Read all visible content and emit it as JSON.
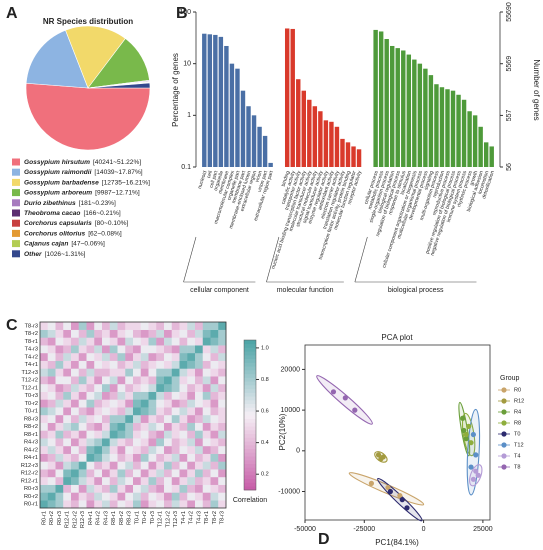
{
  "chart_data": [
    {
      "type": "pie",
      "panel": "A",
      "title": "NR Species distribution",
      "names": [
        "Gossypium hirsutum",
        "Gossypium raimondii",
        "Gossypium barbadense",
        "Gossypium arboreum",
        "Durio zibethinus",
        "Theobroma cacao",
        "Corchorus capsularis",
        "Corchorus olitorius",
        "Cajanus cajan",
        "Other"
      ],
      "values": [
        51.22,
        17.87,
        16.21,
        12.71,
        0.23,
        0.21,
        0.1,
        0.08,
        0.06,
        1.31
      ],
      "value_labels": [
        "[40241~51.22%]",
        "[14039~17.87%]",
        "[12735~16.21%]",
        "[9987~12.71%]",
        "[181~0.23%]",
        "[166~0.21%]",
        "[80~0.10%]",
        "[62~0.08%]",
        "[47~0.06%]",
        "[1026~1.31%]"
      ],
      "colors": [
        "#f0707c",
        "#8db4e2",
        "#f2d96a",
        "#79b94b",
        "#a77bbf",
        "#5b2d70",
        "#c8403f",
        "#e39a33",
        "#b3cd52",
        "#33488d"
      ]
    },
    {
      "type": "bar",
      "panel": "B",
      "ylabel": "Percentage of genes",
      "y2label": "Number of genes",
      "log": true,
      "ylim": [
        0.1,
        100
      ],
      "yticks": [
        0.1,
        1,
        10,
        100
      ],
      "y2lim": [
        56,
        55690
      ],
      "y2ticks": [
        56,
        557,
        5569,
        55690
      ],
      "groups": [
        {
          "name": "cellular component",
          "color": "#4a6fa5",
          "categories": [
            "nucleoid",
            "cell",
            "cell part",
            "organelle",
            "membrane",
            "macromolecular complex",
            "organelle part",
            "membrane part",
            "membrane-enclosed lumen",
            "extracellular region",
            "virion",
            "virion part",
            "extracellular region part"
          ],
          "values": [
            38,
            37,
            36,
            33,
            22,
            10,
            8,
            3,
            1.5,
            1,
            0.6,
            0.4,
            0.12
          ]
        },
        {
          "name": "molecular function",
          "color": "#d93a2b",
          "categories": [
            "binding",
            "catalytic activity",
            "transporter activity",
            "nucleic acid binding transcription factor activity",
            "molecular transducer activity",
            "structural molecule activity",
            "signal transducer activity",
            "enzyme regulator activity",
            "antioxidant activity",
            "electron carrier activity",
            "translation regulator activity",
            "transcription factor activity, protein binding",
            "molecular function regulator",
            "receptor activity"
          ],
          "values": [
            48,
            47,
            5,
            3,
            2,
            1.5,
            1.2,
            0.8,
            0.75,
            0.6,
            0.35,
            0.3,
            0.25,
            0.22
          ]
        },
        {
          "name": "biological process",
          "color": "#4e9a3a",
          "categories": [
            "cellular process",
            "metabolic process",
            "single-organism process",
            "biological regulation",
            "regulation of biological process",
            "response to stimulus",
            "localization",
            "cellular component organization or biogenesis",
            "multicellular organismal process",
            "developmental process",
            "signaling",
            "multi-organism process",
            "reproduction",
            "reproductive process",
            "positive regulation of biological process",
            "negative regulation of biological process",
            "immune system process",
            "rhythmic process",
            "growth",
            "biological adhesion",
            "locomotion",
            "detoxification"
          ],
          "values": [
            45,
            42,
            30,
            22,
            20,
            18,
            15,
            12,
            10,
            8,
            6,
            4,
            3.5,
            3.2,
            3,
            2.5,
            2,
            1.2,
            1,
            0.6,
            0.3,
            0.25
          ]
        }
      ]
    },
    {
      "type": "heatmap",
      "panel": "C",
      "colorbar_label": "Correlation",
      "labels": [
        "R0-r1",
        "R0-r2",
        "R0-r3",
        "R12-r1",
        "R12-r2",
        "R12-r3",
        "R4-r1",
        "R4-r2",
        "R4-r3",
        "R8-r1",
        "R8-r2",
        "R8-r3",
        "T0-r1",
        "T0-r2",
        "T0-r3",
        "T12-r1",
        "T12-r2",
        "T12-r3",
        "T4-r1",
        "T4-r2",
        "T4-r3",
        "T8-r1",
        "T8-r2",
        "T8-r3"
      ],
      "clim": [
        0.1,
        1.05
      ],
      "colormap": [
        "#c65aa6",
        "#f5eff5",
        "#4aa3a5"
      ],
      "cticks": [
        0.2,
        0.4,
        0.6,
        0.8,
        {
          "value": 1,
          "label": "1.0"
        }
      ],
      "values": [
        [
          1,
          0.9,
          0.8,
          0.5,
          0.4,
          0.6,
          0.3,
          0.5,
          0.7,
          0.4,
          0.6,
          0.5,
          0.8,
          0.3,
          0.5,
          0.6,
          0.4,
          0.7,
          0.5,
          0.3,
          0.6,
          0.4,
          0.8,
          0.5
        ],
        [
          0.9,
          1,
          0.8,
          0.6,
          0.3,
          0.5,
          0.4,
          0.7,
          0.6,
          0.5,
          0.3,
          0.6,
          0.7,
          0.4,
          0.6,
          0.5,
          0.3,
          0.8,
          0.4,
          0.6,
          0.5,
          0.3,
          0.7,
          0.6
        ],
        [
          0.8,
          0.8,
          1,
          0.4,
          0.6,
          0.3,
          0.7,
          0.5,
          0.4,
          0.8,
          0.5,
          0.3,
          0.6,
          0.7,
          0.4,
          0.3,
          0.6,
          0.5,
          0.8,
          0.4,
          0.3,
          0.6,
          0.5,
          0.4
        ],
        [
          0.5,
          0.6,
          0.4,
          1,
          0.9,
          0.7,
          0.5,
          0.3,
          0.6,
          0.4,
          0.7,
          0.6,
          0.3,
          0.5,
          0.8,
          0.4,
          0.6,
          0.3,
          0.5,
          0.7,
          0.4,
          0.5,
          0.3,
          0.6
        ],
        [
          0.4,
          0.3,
          0.6,
          0.9,
          1,
          0.8,
          0.4,
          0.6,
          0.3,
          0.5,
          0.8,
          0.4,
          0.6,
          0.3,
          0.5,
          0.7,
          0.4,
          0.6,
          0.3,
          0.5,
          0.8,
          0.4,
          0.6,
          0.3
        ],
        [
          0.6,
          0.5,
          0.3,
          0.7,
          0.8,
          1,
          0.6,
          0.4,
          0.5,
          0.3,
          0.6,
          0.7,
          0.4,
          0.6,
          0.3,
          0.5,
          0.8,
          0.4,
          0.6,
          0.3,
          0.5,
          0.7,
          0.4,
          0.8
        ],
        [
          0.3,
          0.4,
          0.7,
          0.5,
          0.4,
          0.6,
          1,
          0.9,
          0.7,
          0.6,
          0.4,
          0.5,
          0.3,
          0.8,
          0.6,
          0.4,
          0.5,
          0.7,
          0.3,
          0.6,
          0.4,
          0.5,
          0.8,
          0.3
        ],
        [
          0.5,
          0.7,
          0.5,
          0.3,
          0.6,
          0.4,
          0.9,
          1,
          0.8,
          0.5,
          0.3,
          0.6,
          0.5,
          0.4,
          0.7,
          0.6,
          0.3,
          0.4,
          0.6,
          0.5,
          0.7,
          0.3,
          0.4,
          0.6
        ],
        [
          0.7,
          0.6,
          0.4,
          0.6,
          0.3,
          0.5,
          0.7,
          0.8,
          1,
          0.7,
          0.5,
          0.4,
          0.6,
          0.5,
          0.3,
          0.8,
          0.6,
          0.4,
          0.5,
          0.7,
          0.3,
          0.6,
          0.5,
          0.4
        ],
        [
          0.4,
          0.5,
          0.8,
          0.4,
          0.5,
          0.3,
          0.6,
          0.5,
          0.7,
          1,
          0.9,
          0.8,
          0.5,
          0.6,
          0.4,
          0.3,
          0.7,
          0.5,
          0.6,
          0.4,
          0.8,
          0.5,
          0.3,
          0.7
        ],
        [
          0.6,
          0.3,
          0.5,
          0.7,
          0.8,
          0.6,
          0.4,
          0.3,
          0.5,
          0.9,
          1,
          0.8,
          0.4,
          0.5,
          0.7,
          0.6,
          0.3,
          0.5,
          0.4,
          0.8,
          0.6,
          0.3,
          0.5,
          0.4
        ],
        [
          0.5,
          0.6,
          0.3,
          0.6,
          0.4,
          0.7,
          0.5,
          0.6,
          0.4,
          0.8,
          0.8,
          1,
          0.7,
          0.3,
          0.5,
          0.4,
          0.6,
          0.8,
          0.5,
          0.3,
          0.4,
          0.7,
          0.6,
          0.5
        ],
        [
          0.8,
          0.7,
          0.6,
          0.3,
          0.6,
          0.4,
          0.3,
          0.5,
          0.6,
          0.5,
          0.4,
          0.7,
          1,
          0.9,
          0.8,
          0.5,
          0.4,
          0.6,
          0.7,
          0.5,
          0.3,
          0.6,
          0.4,
          0.5
        ],
        [
          0.3,
          0.4,
          0.7,
          0.5,
          0.3,
          0.6,
          0.8,
          0.4,
          0.5,
          0.6,
          0.5,
          0.3,
          0.9,
          1,
          0.8,
          0.6,
          0.5,
          0.3,
          0.4,
          0.7,
          0.6,
          0.5,
          0.3,
          0.6
        ],
        [
          0.5,
          0.6,
          0.4,
          0.8,
          0.5,
          0.3,
          0.6,
          0.7,
          0.3,
          0.4,
          0.7,
          0.5,
          0.8,
          0.8,
          1,
          0.7,
          0.4,
          0.6,
          0.5,
          0.3,
          0.6,
          0.8,
          0.4,
          0.5
        ],
        [
          0.6,
          0.5,
          0.3,
          0.4,
          0.7,
          0.5,
          0.4,
          0.6,
          0.8,
          0.3,
          0.6,
          0.4,
          0.5,
          0.6,
          0.7,
          1,
          0.9,
          0.8,
          0.6,
          0.4,
          0.5,
          0.3,
          0.7,
          0.4
        ],
        [
          0.4,
          0.3,
          0.6,
          0.6,
          0.4,
          0.8,
          0.5,
          0.3,
          0.6,
          0.7,
          0.3,
          0.6,
          0.4,
          0.5,
          0.4,
          0.9,
          1,
          0.8,
          0.5,
          0.6,
          0.4,
          0.7,
          0.3,
          0.6
        ],
        [
          0.7,
          0.8,
          0.5,
          0.3,
          0.6,
          0.4,
          0.7,
          0.4,
          0.4,
          0.5,
          0.5,
          0.8,
          0.6,
          0.3,
          0.6,
          0.8,
          0.8,
          1,
          0.7,
          0.5,
          0.3,
          0.6,
          0.5,
          0.4
        ],
        [
          0.5,
          0.4,
          0.8,
          0.5,
          0.3,
          0.6,
          0.3,
          0.6,
          0.5,
          0.6,
          0.4,
          0.5,
          0.7,
          0.4,
          0.5,
          0.6,
          0.5,
          0.7,
          1,
          0.9,
          0.8,
          0.4,
          0.6,
          0.5
        ],
        [
          0.3,
          0.6,
          0.4,
          0.7,
          0.5,
          0.3,
          0.6,
          0.5,
          0.7,
          0.4,
          0.8,
          0.3,
          0.5,
          0.7,
          0.3,
          0.4,
          0.6,
          0.5,
          0.9,
          1,
          0.8,
          0.6,
          0.4,
          0.7
        ],
        [
          0.6,
          0.5,
          0.3,
          0.4,
          0.8,
          0.5,
          0.4,
          0.7,
          0.3,
          0.8,
          0.6,
          0.4,
          0.3,
          0.6,
          0.6,
          0.5,
          0.4,
          0.3,
          0.8,
          0.8,
          1,
          0.5,
          0.7,
          0.4
        ],
        [
          0.4,
          0.3,
          0.6,
          0.5,
          0.4,
          0.7,
          0.5,
          0.3,
          0.6,
          0.5,
          0.3,
          0.7,
          0.6,
          0.5,
          0.8,
          0.3,
          0.7,
          0.6,
          0.4,
          0.6,
          0.5,
          1,
          0.9,
          0.8
        ],
        [
          0.8,
          0.7,
          0.5,
          0.3,
          0.6,
          0.4,
          0.8,
          0.4,
          0.5,
          0.3,
          0.5,
          0.6,
          0.4,
          0.3,
          0.4,
          0.7,
          0.3,
          0.5,
          0.6,
          0.4,
          0.7,
          0.9,
          1,
          0.8
        ],
        [
          0.5,
          0.6,
          0.4,
          0.6,
          0.3,
          0.8,
          0.3,
          0.6,
          0.4,
          0.7,
          0.4,
          0.5,
          0.5,
          0.6,
          0.5,
          0.4,
          0.6,
          0.4,
          0.5,
          0.7,
          0.4,
          0.8,
          0.8,
          1
        ]
      ]
    },
    {
      "type": "scatter",
      "panel": "D",
      "title": "PCA plot",
      "xlabel": "PC1(84.1%)",
      "ylabel": "PC2(10%)",
      "legend_title": "Group",
      "xlim": [
        -50000,
        28000
      ],
      "ylim": [
        -17000,
        26000
      ],
      "xticks": [
        -50000,
        -25000,
        0,
        25000
      ],
      "yticks": [
        -10000,
        0,
        10000,
        20000
      ],
      "series": [
        {
          "name": "R0",
          "color": "#c9a46a",
          "x": [
            -22000,
            -15000,
            -10000
          ],
          "y": [
            -8000,
            -9000,
            -11000
          ]
        },
        {
          "name": "R12",
          "color": "#a39a3f",
          "x": [
            -19000,
            -18000,
            -17000
          ],
          "y": [
            -1000,
            -2000,
            -1500
          ]
        },
        {
          "name": "R4",
          "color": "#6a9f3a",
          "x": [
            16500,
            17000,
            18000
          ],
          "y": [
            8000,
            5000,
            3000
          ]
        },
        {
          "name": "R8",
          "color": "#8fae3c",
          "x": [
            18000,
            19000,
            20000
          ],
          "y": [
            4000,
            6000,
            2000
          ]
        },
        {
          "name": "T0",
          "color": "#2c2a6e",
          "x": [
            -14000,
            -9000,
            -7000
          ],
          "y": [
            -10000,
            -12000,
            -14000
          ]
        },
        {
          "name": "T12",
          "color": "#5b8fc7",
          "x": [
            20000,
            21000,
            22000
          ],
          "y": [
            -4000,
            4000,
            -1000
          ]
        },
        {
          "name": "T4",
          "color": "#b49bd6",
          "x": [
            21000,
            22000,
            23000
          ],
          "y": [
            -7000,
            -5000,
            -6000
          ]
        },
        {
          "name": "T8",
          "color": "#9466b0",
          "x": [
            -38000,
            -33000,
            -29000
          ],
          "y": [
            14500,
            13000,
            10000
          ]
        }
      ]
    }
  ]
}
